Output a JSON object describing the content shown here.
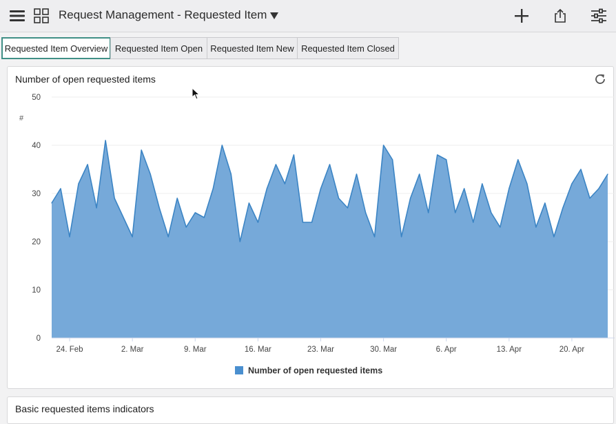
{
  "header": {
    "title": "Request Management - Requested Item",
    "icons": [
      "hamburger-menu-icon",
      "dashboard-grid-icon",
      "dropdown-caret-icon",
      "plus-icon",
      "share-icon",
      "sliders-icon"
    ]
  },
  "tabs": [
    {
      "label": "Requested Item Overview",
      "active": true
    },
    {
      "label": "Requested Item Open",
      "active": false
    },
    {
      "label": "Requested Item New",
      "active": false
    },
    {
      "label": "Requested Item Closed",
      "active": false
    }
  ],
  "widget": {
    "title": "Number of open requested items",
    "refresh_icon": "refresh-icon"
  },
  "chart_data": {
    "type": "area",
    "title": "Number of open requested items",
    "ylabel": "#",
    "xlabel": "",
    "ylim": [
      0,
      50
    ],
    "yticks": [
      0,
      10,
      20,
      30,
      40,
      50
    ],
    "xticks": [
      "24. Feb",
      "2. Mar",
      "9. Mar",
      "16. Mar",
      "23. Mar",
      "30. Mar",
      "6. Apr",
      "13. Apr",
      "20. Apr"
    ],
    "x_start": "2020-02-22",
    "grid": true,
    "legend_position": "bottom",
    "color": "#76a9d9",
    "stroke": "#3b84c4",
    "series": [
      {
        "name": "Number of open requested items",
        "values": [
          28,
          31,
          21,
          32,
          36,
          27,
          41,
          29,
          25,
          21,
          39,
          34,
          27,
          21,
          29,
          23,
          26,
          25,
          31,
          40,
          34,
          20,
          28,
          24,
          31,
          36,
          32,
          38,
          24,
          24,
          31,
          36,
          29,
          27,
          34,
          26,
          21,
          40,
          37,
          21,
          29,
          34,
          26,
          38,
          37,
          26,
          31,
          24,
          32,
          26,
          23,
          31,
          37,
          32,
          23,
          28,
          21,
          27,
          32,
          35,
          29,
          31,
          34
        ]
      }
    ]
  },
  "second_widget": {
    "title": "Basic requested items indicators"
  }
}
